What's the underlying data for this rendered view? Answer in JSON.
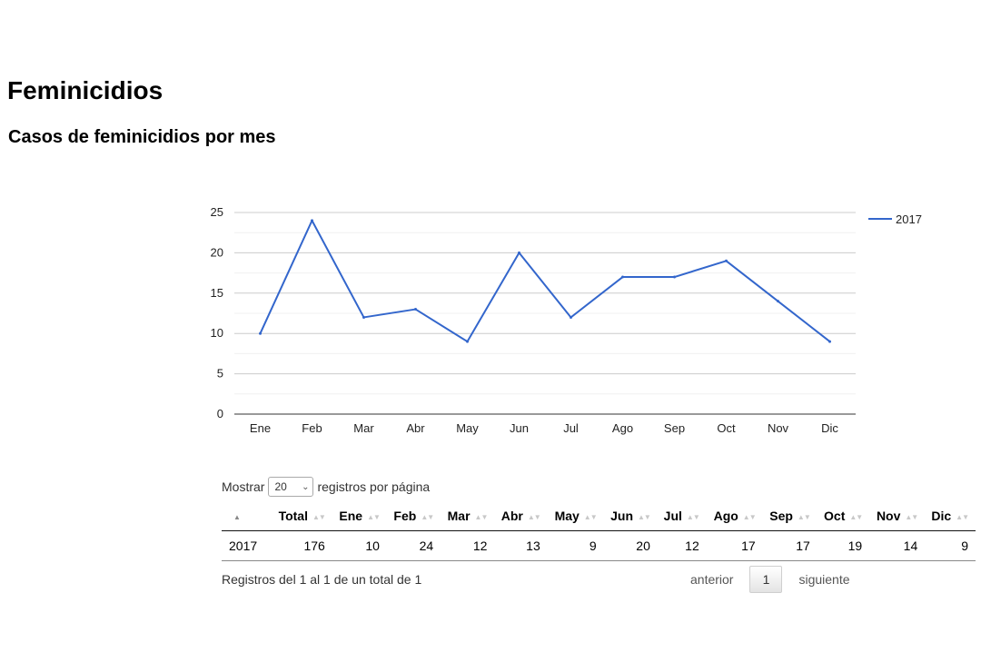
{
  "page": {
    "title": "Feminicidios",
    "subtitle": "Casos de feminicidios por mes"
  },
  "chart_data": {
    "type": "line",
    "categories": [
      "Ene",
      "Feb",
      "Mar",
      "Abr",
      "May",
      "Jun",
      "Jul",
      "Ago",
      "Sep",
      "Oct",
      "Nov",
      "Dic"
    ],
    "series": [
      {
        "name": "2017",
        "values": [
          10,
          24,
          12,
          13,
          9,
          20,
          12,
          17,
          17,
          19,
          14,
          9
        ],
        "color": "#3366cc"
      }
    ],
    "title": "",
    "xlabel": "",
    "ylabel": "",
    "ylim": [
      0,
      25
    ],
    "yticks": [
      0,
      5,
      10,
      15,
      20,
      25
    ],
    "grid": true,
    "legend_position": "right"
  },
  "table": {
    "length_label_before": "Mostrar",
    "length_value": "20",
    "length_label_after": "registros por página",
    "columns": [
      "",
      "Total",
      "Ene",
      "Feb",
      "Mar",
      "Abr",
      "May",
      "Jun",
      "Jul",
      "Ago",
      "Sep",
      "Oct",
      "Nov",
      "Dic"
    ],
    "rows": [
      [
        "2017",
        "176",
        "10",
        "24",
        "12",
        "13",
        "9",
        "20",
        "12",
        "17",
        "17",
        "19",
        "14",
        "9"
      ]
    ],
    "info": "Registros del 1 al 1 de un total de 1",
    "pagination": {
      "previous": "anterior",
      "current": "1",
      "next": "siguiente"
    }
  }
}
